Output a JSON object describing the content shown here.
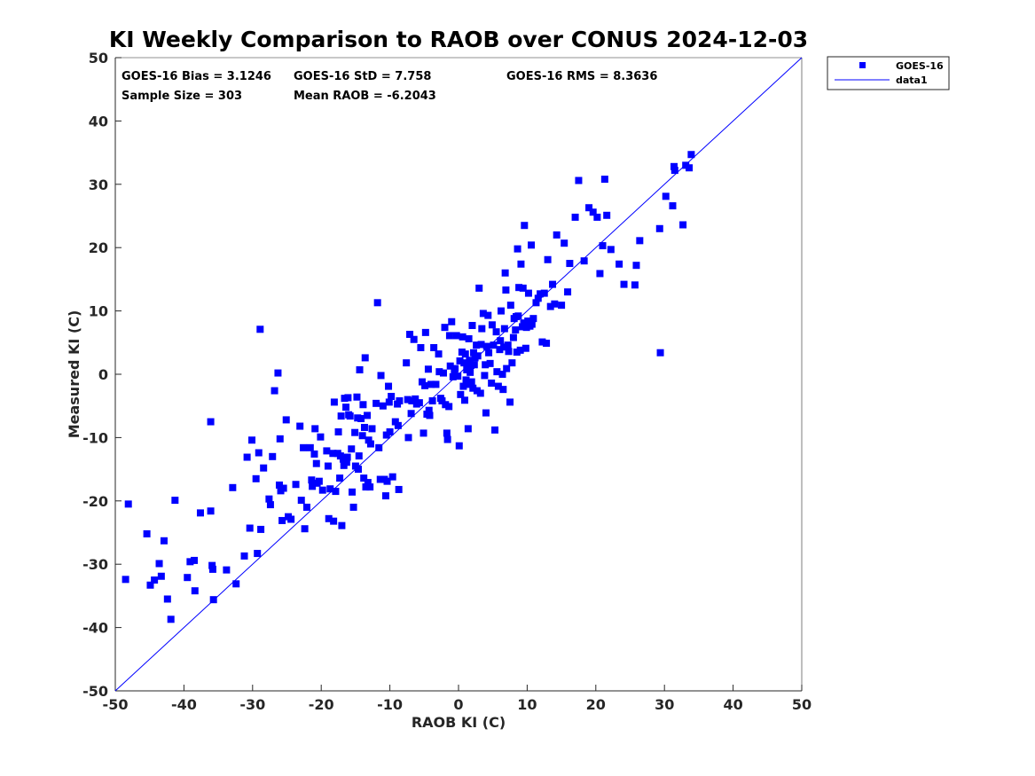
{
  "chart_data": {
    "type": "scatter",
    "title": "KI Weekly Comparison to RAOB over CONUS 2024-12-03",
    "xlabel": "RAOB KI (C)",
    "ylabel": "Measured KI (C)",
    "xlim": [
      -50,
      50
    ],
    "ylim": [
      -50,
      50
    ],
    "xticks": [
      "-50",
      "-40",
      "-30",
      "-20",
      "-10",
      "0",
      "10",
      "20",
      "30",
      "40",
      "50"
    ],
    "yticks": [
      "-50",
      "-40",
      "-30",
      "-20",
      "-10",
      "0",
      "10",
      "20",
      "30",
      "40",
      "50"
    ],
    "grid": false,
    "legend_position": "outside top-right",
    "colors": {
      "series": "#0000ff",
      "line": "#0000ff",
      "axis": "#262626"
    },
    "stats": {
      "bias": "GOES-16 Bias = 3.1246",
      "std": "GOES-16 StD = 7.758",
      "rms": "GOES-16 RMS = 8.3636",
      "sample": "Sample Size = 303",
      "mean": "Mean RAOB = -6.2043"
    },
    "legend": [
      "GOES-16",
      "data1"
    ],
    "line": {
      "name": "data1",
      "x": [
        -50,
        50
      ],
      "y": [
        -50,
        50
      ]
    },
    "series": [
      {
        "name": "GOES-16",
        "points": [
          [
            -48.5,
            -32.4
          ],
          [
            -48.1,
            -20.5
          ],
          [
            -45.4,
            -25.2
          ],
          [
            -44.9,
            -33.3
          ],
          [
            -44.3,
            -32.5
          ],
          [
            -43.6,
            -29.9
          ],
          [
            -43.3,
            -31.9
          ],
          [
            -42.9,
            -26.3
          ],
          [
            -42.4,
            -35.5
          ],
          [
            -41.9,
            -38.7
          ],
          [
            -41.3,
            -19.9
          ],
          [
            -39.5,
            -32.1
          ],
          [
            -39.1,
            -29.6
          ],
          [
            -38.5,
            -29.4
          ],
          [
            -38.4,
            -34.2
          ],
          [
            -37.6,
            -21.9
          ],
          [
            -36.1,
            -21.6
          ],
          [
            -36.1,
            -7.5
          ],
          [
            -35.9,
            -30.2
          ],
          [
            -35.8,
            -30.8
          ],
          [
            -35.7,
            -35.6
          ],
          [
            -33.8,
            -30.9
          ],
          [
            -32.9,
            -17.9
          ],
          [
            -32.4,
            -33.1
          ],
          [
            -31.2,
            -28.7
          ],
          [
            -30.8,
            -13.1
          ],
          [
            -30.4,
            -24.3
          ],
          [
            -30.1,
            -10.4
          ],
          [
            -29.5,
            -16.5
          ],
          [
            -29.3,
            -28.3
          ],
          [
            -29.1,
            -12.4
          ],
          [
            -28.9,
            7.1
          ],
          [
            -28.8,
            -24.5
          ],
          [
            -28.4,
            -14.8
          ],
          [
            -27.6,
            -19.7
          ],
          [
            -27.4,
            -20.6
          ],
          [
            -27.1,
            -13.0
          ],
          [
            -26.8,
            -2.6
          ],
          [
            -26.3,
            0.2
          ],
          [
            -26.1,
            -17.5
          ],
          [
            -26.0,
            -10.2
          ],
          [
            -25.9,
            -18.4
          ],
          [
            -25.7,
            -23.1
          ],
          [
            -25.5,
            -18.0
          ],
          [
            -25.1,
            -7.2
          ],
          [
            -24.8,
            -22.5
          ],
          [
            -24.4,
            -22.9
          ],
          [
            -23.7,
            -17.4
          ],
          [
            -23.1,
            -8.2
          ],
          [
            -22.9,
            -19.9
          ],
          [
            -22.6,
            -11.6
          ],
          [
            -22.4,
            -24.4
          ],
          [
            -22.1,
            -21.0
          ],
          [
            -21.6,
            -11.6
          ],
          [
            -21.4,
            -16.7
          ],
          [
            -21.3,
            -17.7
          ],
          [
            -21.0,
            -12.6
          ],
          [
            -20.9,
            -8.6
          ],
          [
            -20.7,
            -14.1
          ],
          [
            -20.6,
            -17.2
          ],
          [
            -20.3,
            -16.9
          ],
          [
            -20.1,
            -9.9
          ],
          [
            -19.8,
            -18.3
          ],
          [
            -19.2,
            -12.1
          ],
          [
            -19.0,
            -14.5
          ],
          [
            -18.9,
            -22.8
          ],
          [
            -18.7,
            -18.1
          ],
          [
            -18.3,
            -12.5
          ],
          [
            -18.2,
            -23.2
          ],
          [
            -18.1,
            -4.4
          ],
          [
            -17.9,
            -18.5
          ],
          [
            -17.6,
            -12.5
          ],
          [
            -17.5,
            -9.1
          ],
          [
            -17.3,
            -16.4
          ],
          [
            -17.2,
            -12.9
          ],
          [
            -17.1,
            -6.6
          ],
          [
            -17.0,
            -23.9
          ],
          [
            -16.8,
            -13.4
          ],
          [
            -16.7,
            -14.4
          ],
          [
            -16.6,
            -3.8
          ],
          [
            -16.4,
            -5.2
          ],
          [
            -16.3,
            -13.9
          ],
          [
            -16.2,
            -13.1
          ],
          [
            -16.1,
            -3.7
          ],
          [
            -16.0,
            -6.4
          ],
          [
            -15.8,
            -6.6
          ],
          [
            -15.6,
            -11.8
          ],
          [
            -15.5,
            -18.6
          ],
          [
            -15.3,
            -21.0
          ],
          [
            -15.1,
            -9.2
          ],
          [
            -15.0,
            -14.5
          ],
          [
            -14.8,
            -3.6
          ],
          [
            -14.7,
            -6.9
          ],
          [
            -14.6,
            -15.0
          ],
          [
            -14.5,
            -12.9
          ],
          [
            -14.4,
            0.7
          ],
          [
            -14.2,
            -7.0
          ],
          [
            -14.0,
            -9.7
          ],
          [
            -13.9,
            -4.8
          ],
          [
            -13.8,
            -16.4
          ],
          [
            -13.7,
            -8.4
          ],
          [
            -13.6,
            2.6
          ],
          [
            -13.5,
            -17.8
          ],
          [
            -13.3,
            -6.5
          ],
          [
            -13.2,
            -17.1
          ],
          [
            -13.1,
            -10.4
          ],
          [
            -12.9,
            -17.8
          ],
          [
            -12.8,
            -11.0
          ],
          [
            -12.6,
            -8.6
          ],
          [
            -12.0,
            -4.6
          ],
          [
            -11.8,
            11.3
          ],
          [
            -11.6,
            -11.6
          ],
          [
            -11.4,
            -16.6
          ],
          [
            -11.3,
            -0.2
          ],
          [
            -11.0,
            -5.0
          ],
          [
            -10.8,
            -16.6
          ],
          [
            -10.6,
            -19.2
          ],
          [
            -10.5,
            -9.6
          ],
          [
            -10.4,
            -16.9
          ],
          [
            -10.2,
            -1.9
          ],
          [
            -10.1,
            -4.4
          ],
          [
            -10.0,
            -9.1
          ],
          [
            -9.8,
            -3.5
          ],
          [
            -9.6,
            -16.2
          ],
          [
            -9.2,
            -7.5
          ],
          [
            -8.9,
            -4.7
          ],
          [
            -8.8,
            -8.1
          ],
          [
            -8.7,
            -18.2
          ],
          [
            -8.6,
            -4.2
          ],
          [
            -7.6,
            1.8
          ],
          [
            -7.4,
            -4.0
          ],
          [
            -7.3,
            -10.0
          ],
          [
            -7.1,
            6.3
          ],
          [
            -6.9,
            -6.2
          ],
          [
            -6.8,
            -4.2
          ],
          [
            -6.5,
            5.5
          ],
          [
            -6.3,
            -3.9
          ],
          [
            -6.1,
            -4.7
          ],
          [
            -5.7,
            -4.5
          ],
          [
            -5.5,
            4.2
          ],
          [
            -5.3,
            -1.2
          ],
          [
            -5.1,
            -9.3
          ],
          [
            -4.9,
            -1.8
          ],
          [
            -4.8,
            6.6
          ],
          [
            -4.6,
            -6.3
          ],
          [
            -4.4,
            0.8
          ],
          [
            -4.3,
            -5.7
          ],
          [
            -4.2,
            -6.5
          ],
          [
            -4.0,
            -1.6
          ],
          [
            -3.8,
            -4.2
          ],
          [
            -3.6,
            4.2
          ],
          [
            -3.3,
            -1.6
          ],
          [
            -2.9,
            3.2
          ],
          [
            -2.8,
            0.4
          ],
          [
            -2.6,
            -3.8
          ],
          [
            -2.4,
            -4.2
          ],
          [
            -2.2,
            0.2
          ],
          [
            -2.0,
            7.4
          ],
          [
            -1.9,
            -4.8
          ],
          [
            -1.7,
            -9.3
          ],
          [
            -1.6,
            -10.3
          ],
          [
            -1.4,
            -5.1
          ],
          [
            -1.3,
            6.1
          ],
          [
            -1.2,
            1.3
          ],
          [
            -1.0,
            8.3
          ],
          [
            -0.8,
            -0.4
          ],
          [
            -0.6,
            0.4
          ],
          [
            -0.5,
            0.9
          ],
          [
            -0.3,
            6.1
          ],
          [
            -0.1,
            -0.3
          ],
          [
            0.1,
            -11.3
          ],
          [
            0.2,
            2.1
          ],
          [
            0.3,
            -3.2
          ],
          [
            0.5,
            3.5
          ],
          [
            0.6,
            5.9
          ],
          [
            0.7,
            -1.9
          ],
          [
            0.8,
            1.8
          ],
          [
            0.9,
            -4.1
          ],
          [
            1.0,
            3.2
          ],
          [
            1.1,
            -0.9
          ],
          [
            1.2,
            0.7
          ],
          [
            1.3,
            -1.6
          ],
          [
            1.4,
            -8.6
          ],
          [
            1.5,
            5.6
          ],
          [
            1.6,
            2.2
          ],
          [
            1.7,
            0.3
          ],
          [
            1.8,
            1.4
          ],
          [
            1.9,
            -1.2
          ],
          [
            2.0,
            7.7
          ],
          [
            2.1,
            -2.2
          ],
          [
            2.2,
            3.4
          ],
          [
            2.3,
            1.5
          ],
          [
            2.4,
            2.6
          ],
          [
            2.6,
            4.6
          ],
          [
            2.7,
            -2.6
          ],
          [
            2.8,
            2.9
          ],
          [
            3.0,
            13.6
          ],
          [
            3.2,
            -3.0
          ],
          [
            3.3,
            4.7
          ],
          [
            3.4,
            7.2
          ],
          [
            3.6,
            9.6
          ],
          [
            3.8,
            -0.2
          ],
          [
            3.9,
            1.5
          ],
          [
            4.0,
            -6.1
          ],
          [
            4.1,
            4.4
          ],
          [
            4.3,
            9.3
          ],
          [
            4.4,
            3.4
          ],
          [
            4.6,
            1.7
          ],
          [
            4.8,
            -1.4
          ],
          [
            4.9,
            7.8
          ],
          [
            5.1,
            4.6
          ],
          [
            5.3,
            -8.8
          ],
          [
            5.5,
            6.7
          ],
          [
            5.6,
            0.4
          ],
          [
            5.8,
            -1.9
          ],
          [
            6.0,
            3.9
          ],
          [
            6.1,
            5.3
          ],
          [
            6.2,
            10.0
          ],
          [
            6.4,
            0.0
          ],
          [
            6.5,
            -2.4
          ],
          [
            6.6,
            4.3
          ],
          [
            6.7,
            7.2
          ],
          [
            6.8,
            16.0
          ],
          [
            6.9,
            13.3
          ],
          [
            7.0,
            0.9
          ],
          [
            7.2,
            4.6
          ],
          [
            7.3,
            3.6
          ],
          [
            7.5,
            -4.4
          ],
          [
            7.6,
            10.9
          ],
          [
            7.8,
            1.8
          ],
          [
            8.0,
            5.8
          ],
          [
            8.1,
            8.8
          ],
          [
            8.3,
            7.0
          ],
          [
            8.4,
            9.1
          ],
          [
            8.5,
            3.5
          ],
          [
            8.6,
            19.8
          ],
          [
            8.7,
            9.2
          ],
          [
            8.8,
            13.7
          ],
          [
            9.0,
            3.8
          ],
          [
            9.1,
            17.4
          ],
          [
            9.3,
            7.5
          ],
          [
            9.4,
            13.6
          ],
          [
            9.5,
            8.1
          ],
          [
            9.6,
            23.5
          ],
          [
            9.8,
            4.1
          ],
          [
            9.9,
            7.4
          ],
          [
            10.1,
            8.4
          ],
          [
            10.2,
            12.8
          ],
          [
            10.4,
            7.6
          ],
          [
            10.6,
            20.4
          ],
          [
            10.7,
            7.9
          ],
          [
            10.9,
            8.8
          ],
          [
            11.3,
            11.3
          ],
          [
            11.6,
            12.0
          ],
          [
            11.9,
            12.7
          ],
          [
            12.2,
            5.1
          ],
          [
            12.5,
            12.8
          ],
          [
            12.8,
            4.9
          ],
          [
            13.0,
            18.1
          ],
          [
            13.4,
            10.7
          ],
          [
            13.7,
            14.2
          ],
          [
            14.0,
            11.1
          ],
          [
            14.3,
            22.0
          ],
          [
            15.0,
            10.9
          ],
          [
            15.4,
            20.7
          ],
          [
            15.9,
            13.0
          ],
          [
            16.2,
            17.5
          ],
          [
            17.0,
            24.8
          ],
          [
            17.5,
            30.6
          ],
          [
            18.3,
            17.9
          ],
          [
            19.0,
            26.3
          ],
          [
            19.6,
            25.6
          ],
          [
            20.2,
            24.8
          ],
          [
            20.6,
            15.9
          ],
          [
            21.0,
            20.3
          ],
          [
            21.3,
            30.8
          ],
          [
            21.6,
            25.1
          ],
          [
            22.2,
            19.7
          ],
          [
            23.4,
            17.4
          ],
          [
            24.1,
            14.2
          ],
          [
            25.7,
            14.1
          ],
          [
            25.9,
            17.2
          ],
          [
            26.4,
            21.1
          ],
          [
            29.3,
            23.0
          ],
          [
            29.4,
            3.4
          ],
          [
            30.2,
            28.1
          ],
          [
            31.2,
            26.6
          ],
          [
            31.4,
            32.8
          ],
          [
            31.5,
            32.2
          ],
          [
            32.7,
            23.6
          ],
          [
            33.1,
            33.0
          ],
          [
            33.6,
            32.6
          ],
          [
            33.9,
            34.7
          ]
        ]
      }
    ]
  }
}
